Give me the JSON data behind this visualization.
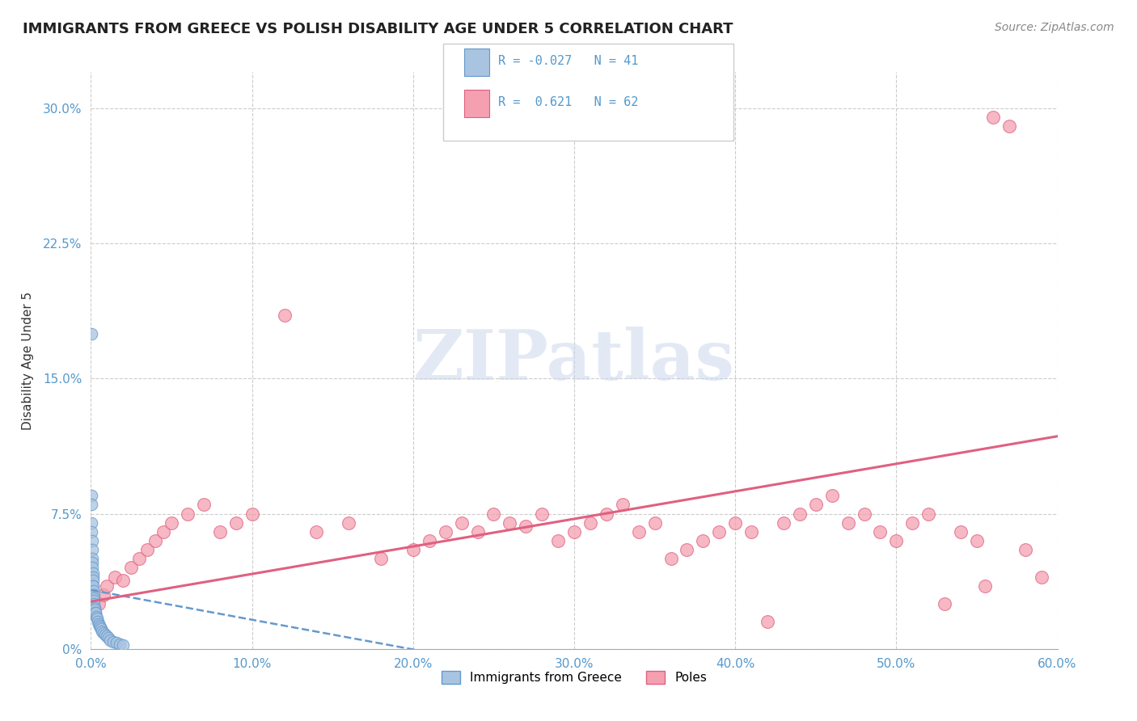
{
  "title": "IMMIGRANTS FROM GREECE VS POLISH DISABILITY AGE UNDER 5 CORRELATION CHART",
  "source": "Source: ZipAtlas.com",
  "xlabel_vals": [
    0,
    10,
    20,
    30,
    40,
    50,
    60
  ],
  "ylabel_vals": [
    0,
    7.5,
    15.0,
    22.5,
    30.0
  ],
  "ylabel_label": "Disability Age Under 5",
  "xlim": [
    0,
    60
  ],
  "ylim": [
    0,
    32
  ],
  "blue_R": -0.027,
  "blue_N": 41,
  "pink_R": 0.621,
  "pink_N": 62,
  "blue_color": "#a8c4e0",
  "pink_color": "#f4a0b0",
  "blue_edge": "#6699cc",
  "pink_edge": "#e06080",
  "watermark": "ZIPatlas",
  "legend_label_greece": "Immigrants from Greece",
  "legend_label_poles": "Poles",
  "blue_x": [
    0.01,
    0.02,
    0.03,
    0.04,
    0.05,
    0.06,
    0.07,
    0.08,
    0.09,
    0.1,
    0.11,
    0.12,
    0.13,
    0.14,
    0.15,
    0.16,
    0.17,
    0.18,
    0.19,
    0.2,
    0.22,
    0.25,
    0.28,
    0.3,
    0.35,
    0.4,
    0.45,
    0.5,
    0.55,
    0.6,
    0.65,
    0.7,
    0.8,
    0.9,
    1.0,
    1.1,
    1.2,
    1.4,
    1.6,
    1.8,
    2.0
  ],
  "blue_y": [
    17.5,
    8.5,
    8.0,
    7.0,
    6.5,
    6.0,
    5.5,
    5.0,
    4.8,
    4.5,
    4.2,
    4.0,
    3.8,
    3.5,
    3.5,
    3.2,
    3.0,
    2.8,
    2.7,
    2.5,
    2.3,
    2.2,
    2.0,
    2.0,
    1.8,
    1.7,
    1.5,
    1.4,
    1.3,
    1.2,
    1.1,
    1.0,
    0.9,
    0.8,
    0.7,
    0.6,
    0.5,
    0.4,
    0.35,
    0.25,
    0.2
  ],
  "pink_x": [
    0.2,
    0.5,
    0.8,
    1.0,
    1.5,
    2.0,
    2.5,
    3.0,
    3.5,
    4.0,
    4.5,
    5.0,
    6.0,
    7.0,
    8.0,
    9.0,
    10.0,
    12.0,
    14.0,
    16.0,
    18.0,
    20.0,
    21.0,
    22.0,
    23.0,
    24.0,
    25.0,
    26.0,
    27.0,
    28.0,
    29.0,
    30.0,
    31.0,
    32.0,
    33.0,
    34.0,
    35.0,
    36.0,
    37.0,
    38.0,
    39.0,
    40.0,
    41.0,
    42.0,
    43.0,
    44.0,
    45.0,
    46.0,
    47.0,
    48.0,
    49.0,
    50.0,
    51.0,
    52.0,
    53.0,
    54.0,
    55.0,
    56.0,
    57.0,
    58.0,
    55.5,
    59.0
  ],
  "pink_y": [
    2.0,
    2.5,
    3.0,
    3.5,
    4.0,
    3.8,
    4.5,
    5.0,
    5.5,
    6.0,
    6.5,
    7.0,
    7.5,
    8.0,
    6.5,
    7.0,
    7.5,
    18.5,
    6.5,
    7.0,
    5.0,
    5.5,
    6.0,
    6.5,
    7.0,
    6.5,
    7.5,
    7.0,
    6.8,
    7.5,
    6.0,
    6.5,
    7.0,
    7.5,
    8.0,
    6.5,
    7.0,
    5.0,
    5.5,
    6.0,
    6.5,
    7.0,
    6.5,
    1.5,
    7.0,
    7.5,
    8.0,
    8.5,
    7.0,
    7.5,
    6.5,
    6.0,
    7.0,
    7.5,
    2.5,
    6.5,
    6.0,
    29.5,
    29.0,
    5.5,
    3.5,
    4.0
  ]
}
